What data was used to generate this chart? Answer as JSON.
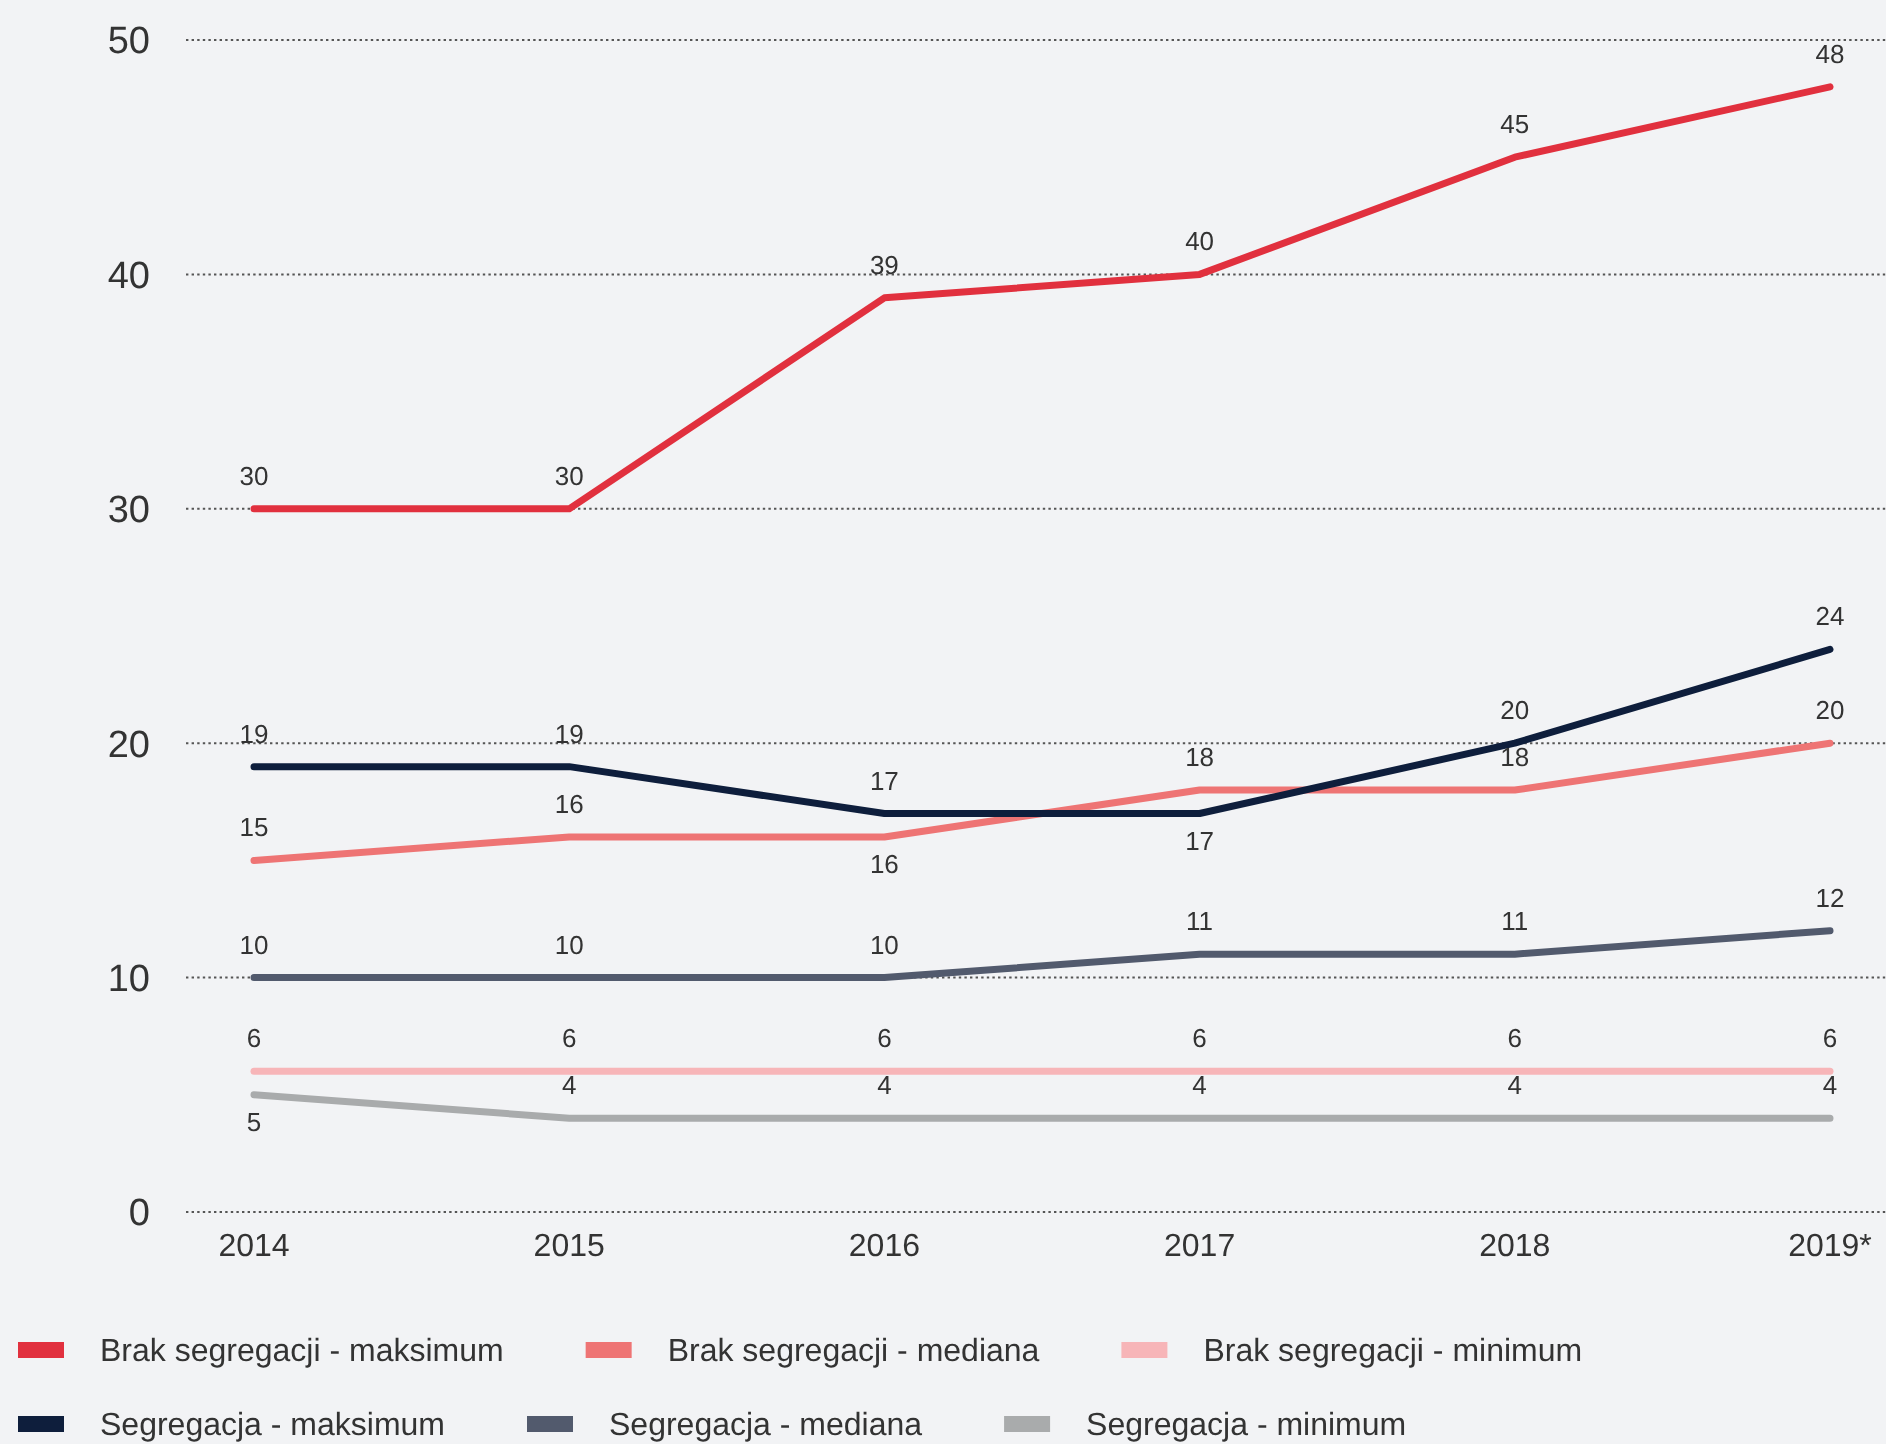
{
  "chart_data": {
    "type": "line",
    "categories": [
      "2014",
      "2015",
      "2016",
      "2017",
      "2018",
      "2019*"
    ],
    "series": [
      {
        "name": "Brak segregacji - maksimum",
        "color": "#e1303e",
        "values": [
          30,
          30,
          39,
          40,
          45,
          48
        ]
      },
      {
        "name": "Brak segregacji - mediana",
        "color": "#ee7474",
        "values": [
          15,
          16,
          16,
          18,
          18,
          20
        ]
      },
      {
        "name": "Brak segregacji - minimum",
        "color": "#f7b5b8",
        "values": [
          6,
          6,
          6,
          6,
          6,
          6
        ]
      },
      {
        "name": "Segregacja - maksimum",
        "color": "#0e1e3c",
        "values": [
          19,
          19,
          17,
          17,
          20,
          24
        ]
      },
      {
        "name": "Segregacja - mediana",
        "color": "#525a6d",
        "values": [
          10,
          10,
          10,
          11,
          11,
          12
        ]
      },
      {
        "name": "Segregacja - minimum",
        "color": "#a9abac",
        "values": [
          5,
          4,
          4,
          4,
          4,
          4
        ]
      }
    ],
    "ylim": [
      0,
      50
    ],
    "yticks": [
      0,
      10,
      20,
      30,
      40,
      50
    ],
    "grid": "y",
    "legend": "bottom",
    "data_labels": true,
    "line_style": "solid"
  }
}
